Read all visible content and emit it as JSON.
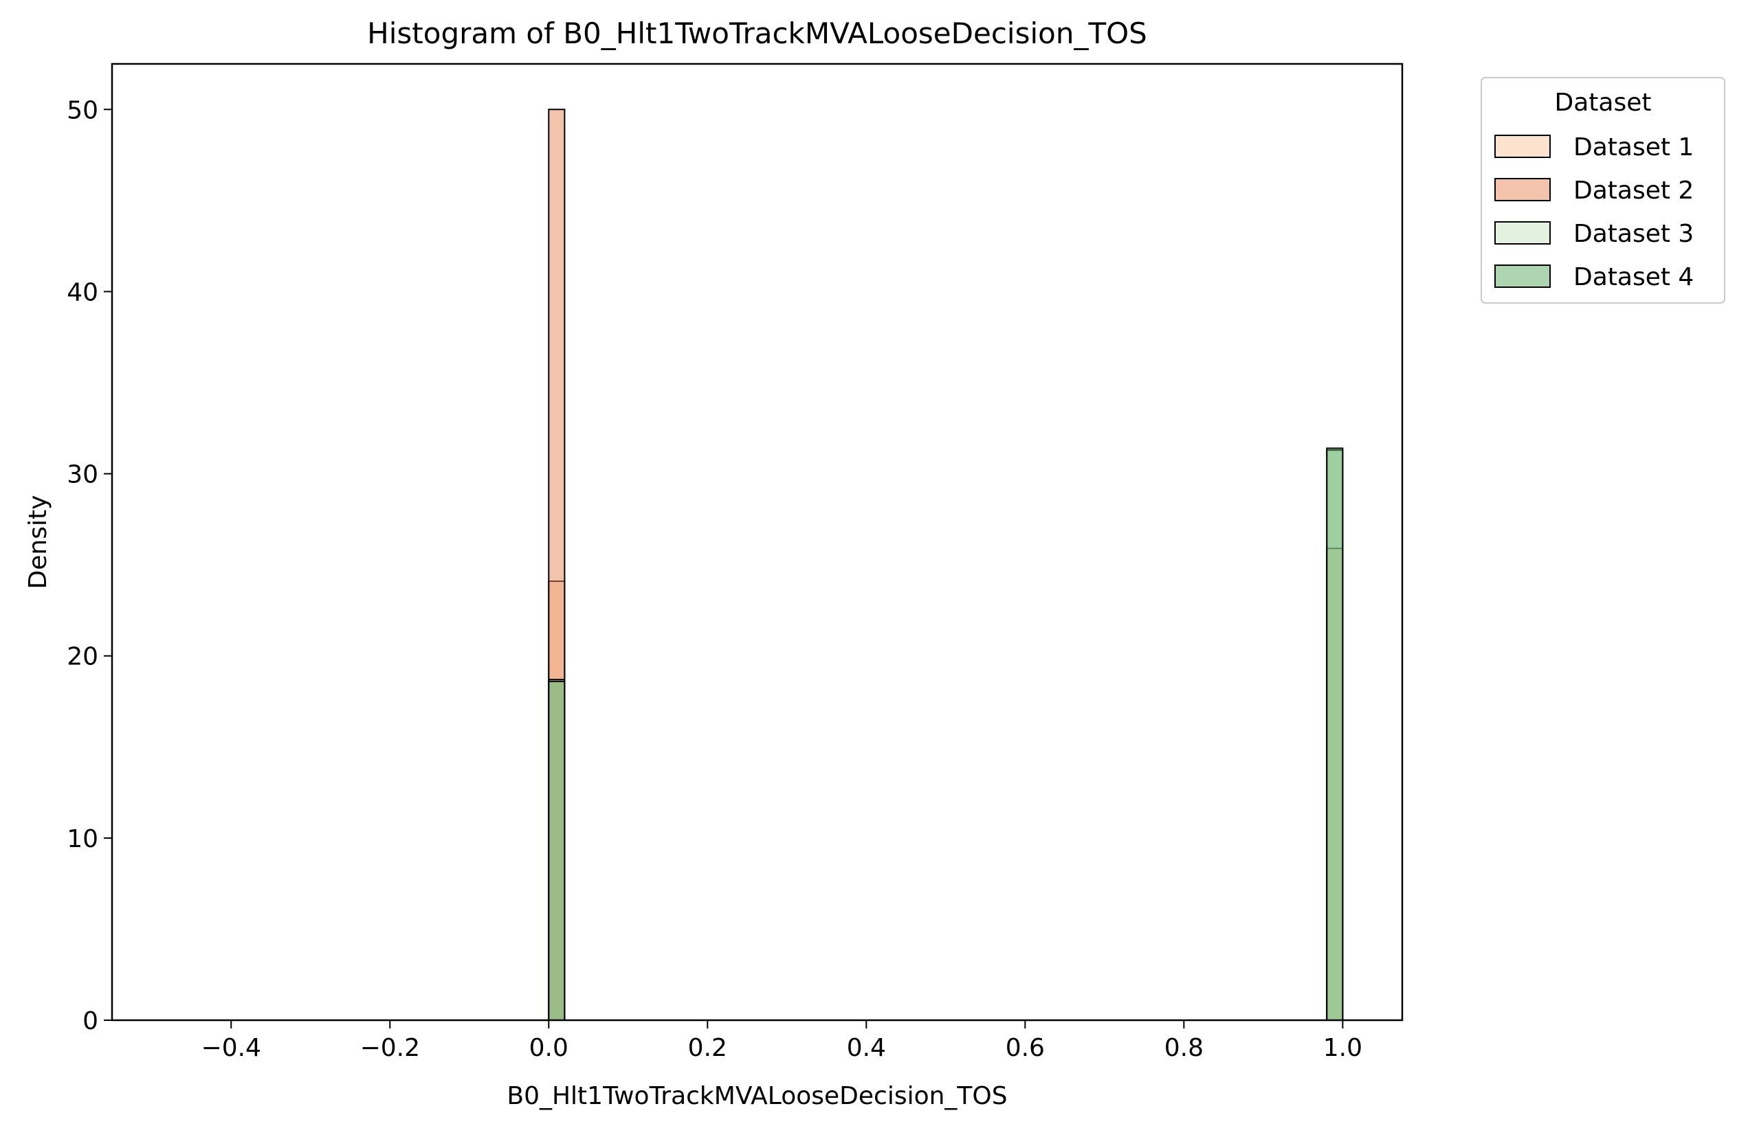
{
  "chart_data": {
    "type": "bar",
    "title": "Histogram of B0_Hlt1TwoTrackMVALooseDecision_TOS",
    "xlabel": "B0_Hlt1TwoTrackMVALooseDecision_TOS",
    "ylabel": "Density",
    "xlim": [
      -0.55,
      1.075
    ],
    "ylim": [
      0,
      52.5
    ],
    "xticks": [
      -0.4,
      -0.2,
      0.0,
      0.2,
      0.4,
      0.6,
      0.8,
      1.0
    ],
    "xtick_labels": [
      "−0.4",
      "−0.2",
      "0.0",
      "0.2",
      "0.4",
      "0.6",
      "0.8",
      "1.0"
    ],
    "yticks": [
      0,
      10,
      20,
      30,
      40,
      50
    ],
    "ytick_labels": [
      "0",
      "10",
      "20",
      "30",
      "40",
      "50"
    ],
    "grid": false,
    "legend": {
      "title": "Dataset",
      "placement": "outside-top-right"
    },
    "bin_width": 0.02,
    "series": [
      {
        "name": "Dataset 1",
        "color": "#f9c89f",
        "opacity": 0.5,
        "bars": [
          {
            "x_start": 0.0,
            "x_end": 0.02,
            "value": 24.1
          },
          {
            "x_start": 0.98,
            "x_end": 1.0,
            "value": 25.9
          }
        ]
      },
      {
        "name": "Dataset 2",
        "color": "#e8875a",
        "opacity": 0.5,
        "bars": [
          {
            "x_start": 0.0,
            "x_end": 0.02,
            "value": 50.0
          }
        ]
      },
      {
        "name": "Dataset 3",
        "color": "#c7e6c0",
        "opacity": 0.5,
        "bars": [
          {
            "x_start": 0.0,
            "x_end": 0.02,
            "value": 18.7
          },
          {
            "x_start": 0.98,
            "x_end": 1.0,
            "value": 31.3
          }
        ]
      },
      {
        "name": "Dataset 4",
        "color": "#5aab61",
        "opacity": 0.5,
        "bars": [
          {
            "x_start": 0.0,
            "x_end": 0.02,
            "value": 18.6
          },
          {
            "x_start": 0.98,
            "x_end": 1.0,
            "value": 31.4
          }
        ]
      }
    ]
  }
}
